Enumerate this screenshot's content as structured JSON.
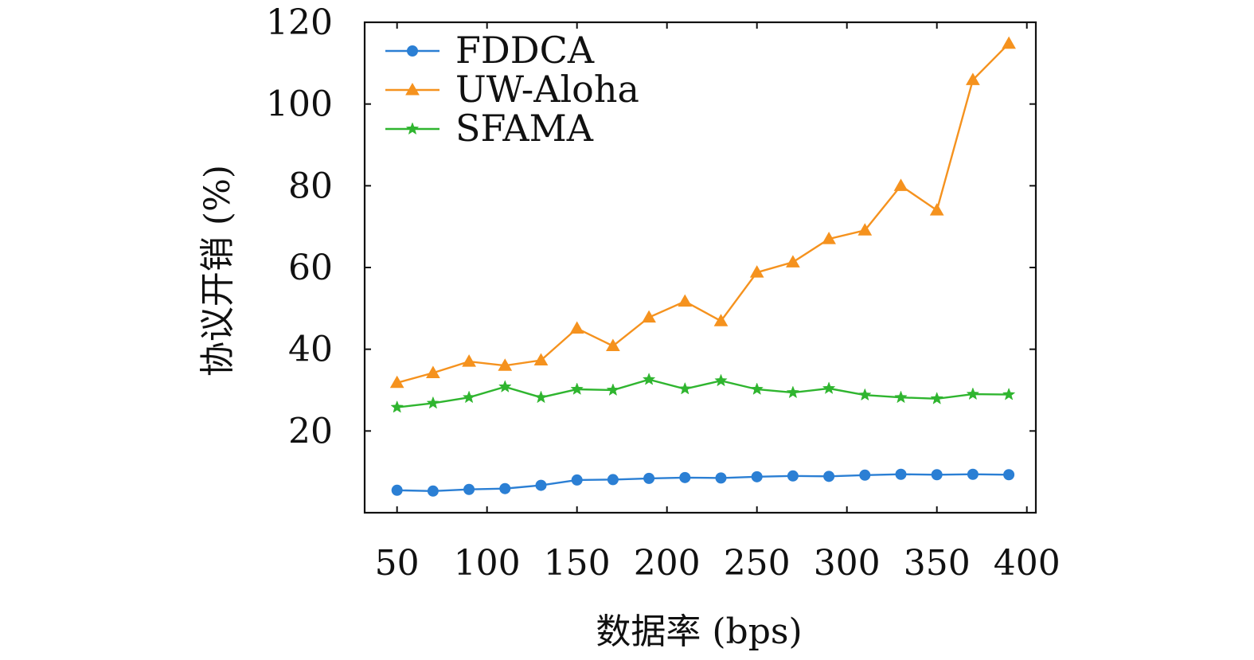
{
  "chart_data": {
    "type": "line",
    "title": "",
    "xlabel": "数据率 (bps)",
    "ylabel": "协议开销 (%)",
    "xlim": [
      32,
      405
    ],
    "ylim": [
      0,
      120
    ],
    "xticks": [
      50,
      100,
      150,
      200,
      250,
      300,
      350,
      400
    ],
    "yticks": [
      20,
      40,
      60,
      80,
      100,
      120
    ],
    "grid": false,
    "legend": "top-left",
    "x": [
      50,
      70,
      90,
      110,
      130,
      150,
      170,
      190,
      210,
      230,
      250,
      270,
      290,
      310,
      330,
      350,
      370,
      390
    ],
    "series": [
      {
        "name": "FDDCA",
        "color": "#2b7fd4",
        "marker": "circle",
        "values": [
          5.5,
          5.3,
          5.7,
          5.9,
          6.7,
          8.0,
          8.1,
          8.4,
          8.6,
          8.5,
          8.8,
          9.0,
          8.9,
          9.2,
          9.4,
          9.3,
          9.4,
          9.3
        ]
      },
      {
        "name": "UW-Aloha",
        "color": "#f5921e",
        "marker": "triangle",
        "values": [
          31.8,
          34.2,
          37.0,
          36.0,
          37.3,
          45.1,
          40.8,
          47.8,
          51.7,
          46.9,
          58.8,
          61.3,
          67.0,
          69.1,
          80.0,
          74.0,
          105.9,
          114.8
        ]
      },
      {
        "name": "SFAMA",
        "color": "#2fb52f",
        "marker": "star",
        "values": [
          25.8,
          26.8,
          28.2,
          30.8,
          28.2,
          30.2,
          30.0,
          32.6,
          30.3,
          32.3,
          30.2,
          29.4,
          30.4,
          28.8,
          28.2,
          27.9,
          29.0,
          28.9
        ]
      }
    ]
  }
}
